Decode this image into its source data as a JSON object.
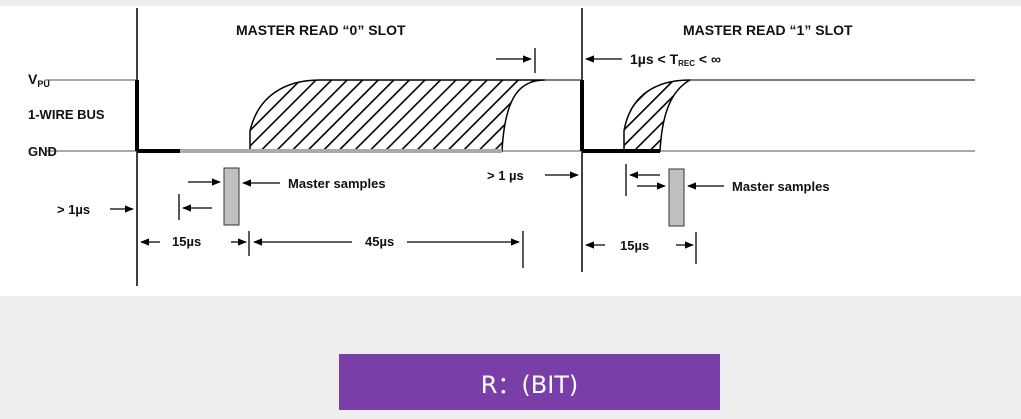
{
  "diagram": {
    "title_read0": "MASTER READ “0” SLOT",
    "title_read1": "MASTER READ “1” SLOT",
    "vpu_main": "V",
    "vpu_sub": "PU",
    "bus_label": "1-WIRE BUS",
    "gnd_label": "GND",
    "trec_prefix": "1µs < T",
    "trec_sub": "REC",
    "trec_suffix": " < ∞",
    "master_samples_left": "Master samples",
    "master_samples_right": "Master samples",
    "gt1us_left": "> 1µs",
    "gt1us_mid": "> 1 µs",
    "t15us_left": "15µs",
    "t45us": "45µs",
    "t15us_right": "15µs",
    "colors": {
      "line_vpu": "#555555",
      "pull_low": "#111111",
      "ground_grey": "#aaaaaa",
      "sample_box": "#c0c0c0"
    }
  },
  "footer": {
    "button_label": "R：(BIT)",
    "button_color": "#7a3ea8"
  }
}
